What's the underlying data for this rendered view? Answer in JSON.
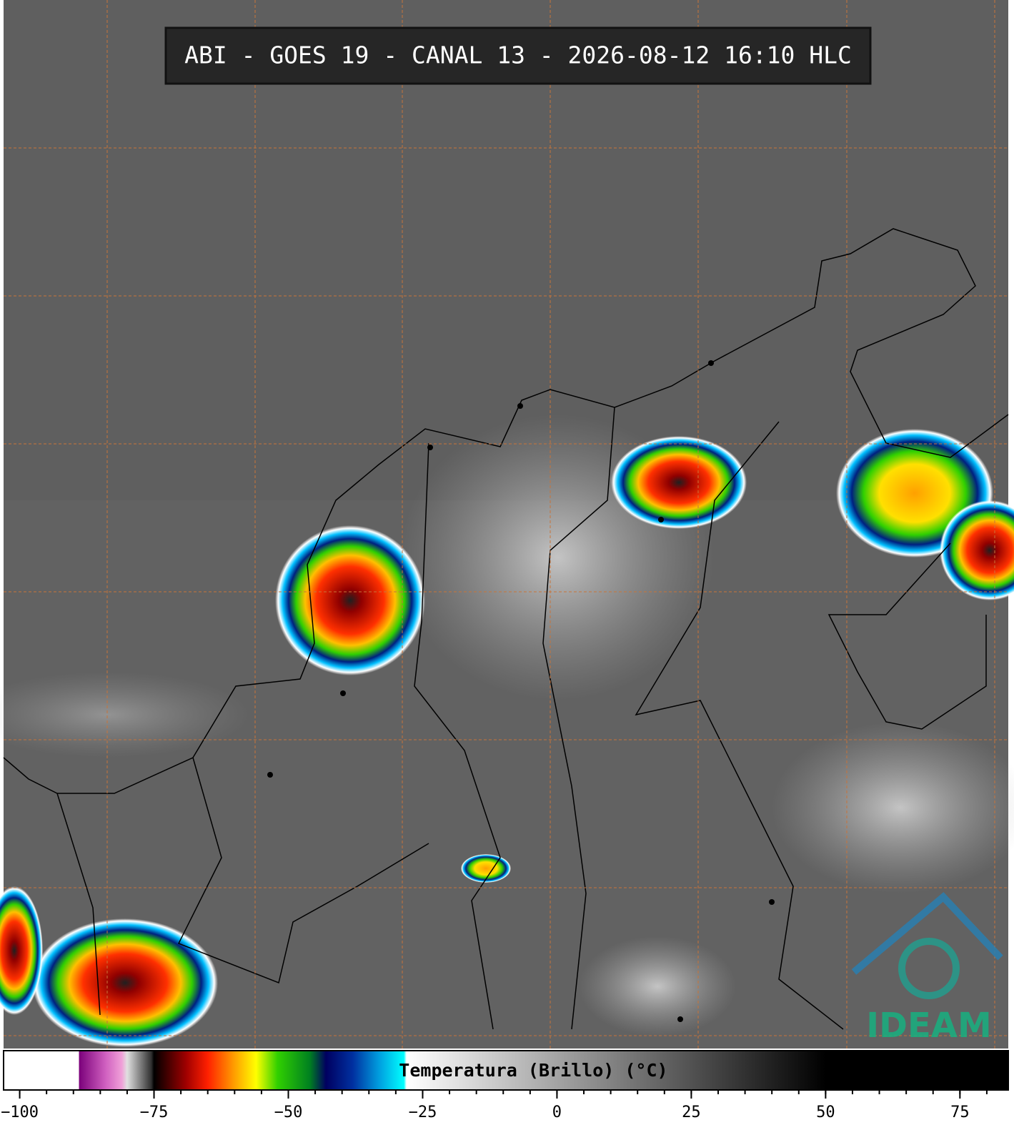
{
  "title": "ABI - GOES 19 - CANAL 13 - 2026-08-12 16:10 HLC",
  "logo": "IDEAM",
  "colorbar": {
    "label": "Temperatura (Brillo) (°C)",
    "xlim": [
      -103,
      84
    ],
    "xticks": [
      {
        "value": -100,
        "label": "−100"
      },
      {
        "value": -75,
        "label": "−75"
      },
      {
        "value": -50,
        "label": "−50"
      },
      {
        "value": -25,
        "label": "−25"
      },
      0,
      25,
      50,
      75
    ],
    "minor_step": 5,
    "colormap": [
      {
        "value": -103,
        "color": "#ffffff"
      },
      {
        "value": -89,
        "color": "#ffffff"
      },
      {
        "value": -89,
        "color": "#7a007a"
      },
      {
        "value": -84,
        "color": "#d060c0"
      },
      {
        "value": -81,
        "color": "#f0a0d8"
      },
      {
        "value": -80,
        "color": "#e0e0e0"
      },
      {
        "value": -75.5,
        "color": "#303030"
      },
      {
        "value": -75,
        "color": "#000000"
      },
      {
        "value": -69,
        "color": "#a00000"
      },
      {
        "value": -65,
        "color": "#ff2000"
      },
      {
        "value": -60,
        "color": "#ffa000"
      },
      {
        "value": -56,
        "color": "#ffff00"
      },
      {
        "value": -52,
        "color": "#30d000"
      },
      {
        "value": -46,
        "color": "#008020"
      },
      {
        "value": -43,
        "color": "#000060"
      },
      {
        "value": -38,
        "color": "#0030a0"
      },
      {
        "value": -33,
        "color": "#00a0e0"
      },
      {
        "value": -28.5,
        "color": "#00ffff"
      },
      {
        "value": -28,
        "color": "#ffffff"
      },
      {
        "value": 50,
        "color": "#000000"
      },
      {
        "value": 84,
        "color": "#000000"
      }
    ]
  }
}
